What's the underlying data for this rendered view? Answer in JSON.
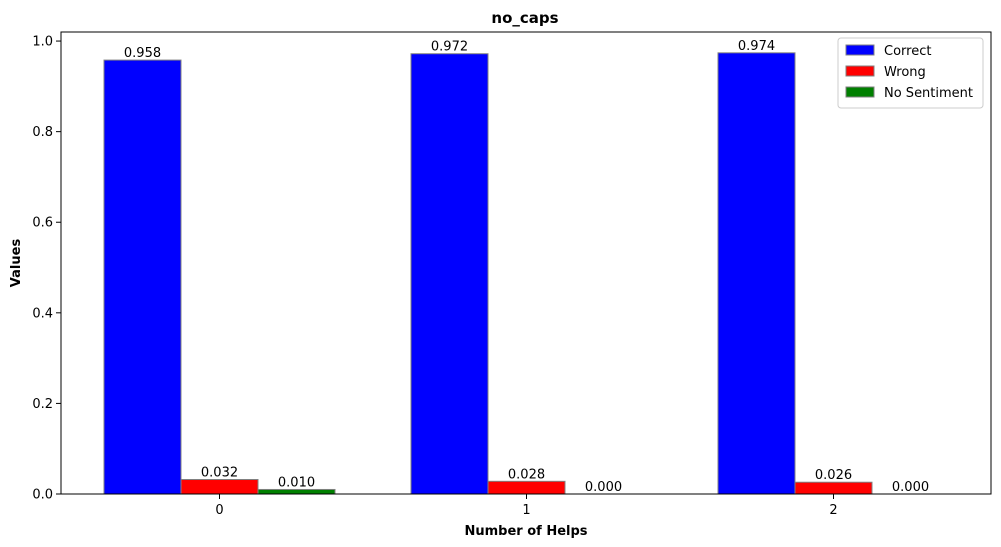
{
  "chart_data": {
    "type": "bar",
    "title": "no_caps",
    "xlabel": "Number of Helps",
    "ylabel": "Values",
    "categories": [
      "0",
      "1",
      "2"
    ],
    "series": [
      {
        "name": "Correct",
        "values": [
          0.958,
          0.972,
          0.974
        ],
        "labels": [
          "0.958",
          "0.972",
          "0.974"
        ],
        "color": "#0000ff"
      },
      {
        "name": "Wrong",
        "values": [
          0.032,
          0.028,
          0.026
        ],
        "labels": [
          "0.032",
          "0.028",
          "0.026"
        ],
        "color": "#ff0000"
      },
      {
        "name": "No Sentiment",
        "values": [
          0.01,
          0.0,
          0.0
        ],
        "labels": [
          "0.010",
          "0.000",
          "0.000"
        ],
        "color": "#008000"
      }
    ],
    "ylim": [
      0,
      1.02
    ],
    "yticks": [
      "0.0",
      "0.2",
      "0.4",
      "0.6",
      "0.8",
      "1.0"
    ],
    "grid": false,
    "legend_position": "top-right"
  }
}
